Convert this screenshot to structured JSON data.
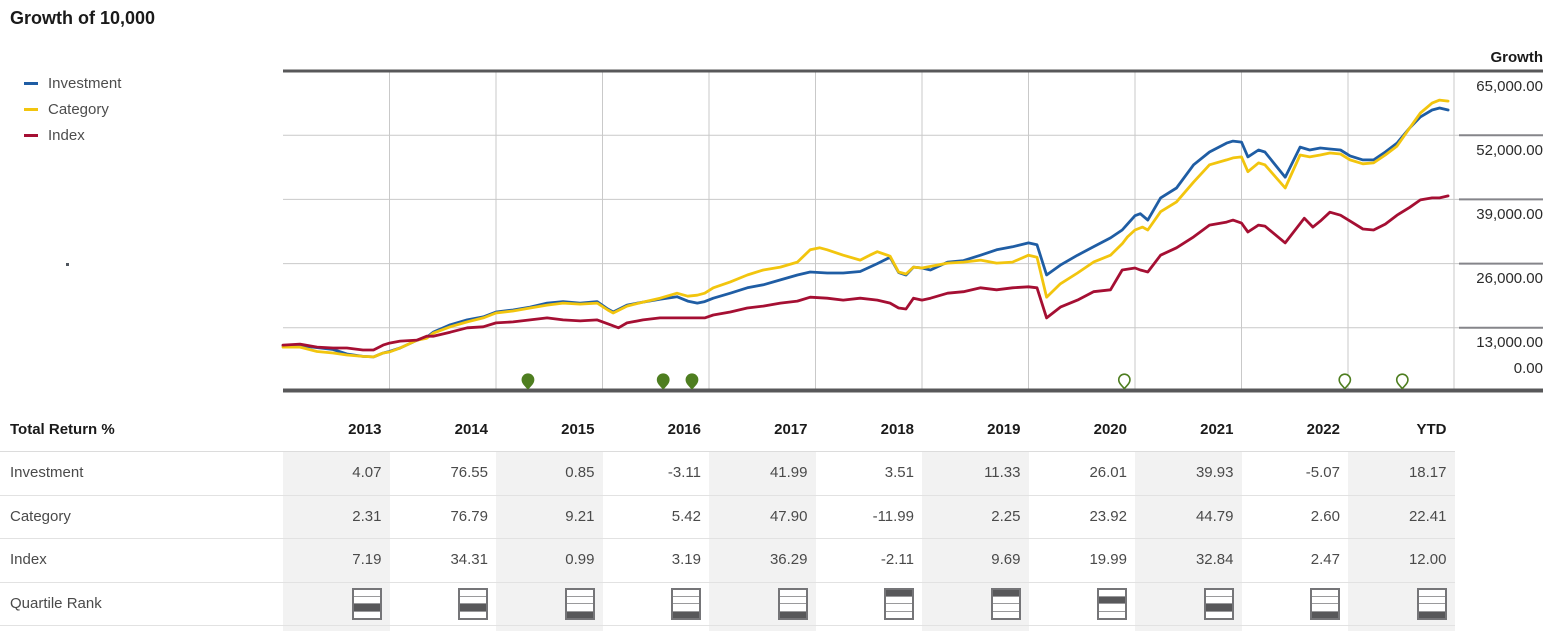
{
  "title": "Growth of 10,000",
  "legend": [
    {
      "label": "Investment",
      "color": "#1f5da4"
    },
    {
      "label": "Category",
      "color": "#f2c50e"
    },
    {
      "label": "Index",
      "color": "#a50f33"
    }
  ],
  "y_axis": {
    "header": "Growth",
    "labels": [
      "65,000.00",
      "52,000.00",
      "39,000.00",
      "26,000.00",
      "13,000.00",
      "0.00"
    ]
  },
  "chart_data": {
    "type": "line",
    "title": "Growth of 10,000",
    "x_unit": "years since Jan 2013",
    "x_range": [
      0,
      11
    ],
    "ylim": [
      0,
      65000
    ],
    "grid": true,
    "legend_position": "left",
    "series": [
      {
        "name": "Investment",
        "color": "#1f5da4",
        "points": [
          [
            0,
            9400
          ],
          [
            0.16,
            9400
          ],
          [
            0.32,
            9000
          ],
          [
            0.47,
            8600
          ],
          [
            0.6,
            7700
          ],
          [
            0.75,
            7200
          ],
          [
            0.85,
            7100
          ],
          [
            0.94,
            7900
          ],
          [
            1.0,
            8200
          ],
          [
            1.1,
            8900
          ],
          [
            1.26,
            10500
          ],
          [
            1.35,
            11100
          ],
          [
            1.41,
            12100
          ],
          [
            1.57,
            13600
          ],
          [
            1.73,
            14600
          ],
          [
            1.88,
            15200
          ],
          [
            2.0,
            16200
          ],
          [
            2.16,
            16600
          ],
          [
            2.32,
            17200
          ],
          [
            2.48,
            18000
          ],
          [
            2.63,
            18300
          ],
          [
            2.79,
            18000
          ],
          [
            2.95,
            18300
          ],
          [
            3.05,
            16800
          ],
          [
            3.1,
            16200
          ],
          [
            3.23,
            17600
          ],
          [
            3.38,
            18200
          ],
          [
            3.54,
            18800
          ],
          [
            3.7,
            19300
          ],
          [
            3.8,
            18400
          ],
          [
            3.89,
            18000
          ],
          [
            3.96,
            18300
          ],
          [
            4.04,
            19000
          ],
          [
            4.2,
            20000
          ],
          [
            4.36,
            21100
          ],
          [
            4.51,
            21700
          ],
          [
            4.67,
            22700
          ],
          [
            4.83,
            23700
          ],
          [
            4.95,
            24300
          ],
          [
            5.11,
            24100
          ],
          [
            5.26,
            24100
          ],
          [
            5.42,
            24400
          ],
          [
            5.58,
            26000
          ],
          [
            5.7,
            27300
          ],
          [
            5.78,
            24200
          ],
          [
            5.85,
            23700
          ],
          [
            5.92,
            25300
          ],
          [
            6.0,
            25100
          ],
          [
            6.08,
            24700
          ],
          [
            6.24,
            26300
          ],
          [
            6.39,
            26600
          ],
          [
            6.55,
            27700
          ],
          [
            6.7,
            28800
          ],
          [
            6.85,
            29400
          ],
          [
            7.0,
            30200
          ],
          [
            7.08,
            29800
          ],
          [
            7.17,
            23700
          ],
          [
            7.3,
            25700
          ],
          [
            7.46,
            27700
          ],
          [
            7.61,
            29400
          ],
          [
            7.77,
            31200
          ],
          [
            7.88,
            32800
          ],
          [
            7.93,
            34000
          ],
          [
            8.0,
            35700
          ],
          [
            8.05,
            36100
          ],
          [
            8.12,
            34800
          ],
          [
            8.24,
            39300
          ],
          [
            8.39,
            41300
          ],
          [
            8.55,
            46000
          ],
          [
            8.7,
            48600
          ],
          [
            8.86,
            50400
          ],
          [
            8.92,
            50800
          ],
          [
            9.0,
            50600
          ],
          [
            9.06,
            47600
          ],
          [
            9.16,
            49000
          ],
          [
            9.22,
            48600
          ],
          [
            9.41,
            43500
          ],
          [
            9.55,
            49600
          ],
          [
            9.64,
            49000
          ],
          [
            9.74,
            49400
          ],
          [
            9.83,
            49200
          ],
          [
            9.93,
            49000
          ],
          [
            10.02,
            47800
          ],
          [
            10.14,
            47000
          ],
          [
            10.24,
            47000
          ],
          [
            10.35,
            48600
          ],
          [
            10.46,
            50400
          ],
          [
            10.58,
            53500
          ],
          [
            10.68,
            55700
          ],
          [
            10.79,
            57100
          ],
          [
            10.86,
            57500
          ],
          [
            10.94,
            57100
          ]
        ]
      },
      {
        "name": "Category",
        "color": "#f2c50e",
        "points": [
          [
            0,
            9100
          ],
          [
            0.16,
            9100
          ],
          [
            0.32,
            8200
          ],
          [
            0.47,
            7900
          ],
          [
            0.6,
            7500
          ],
          [
            0.75,
            7200
          ],
          [
            0.85,
            7100
          ],
          [
            0.94,
            7900
          ],
          [
            1.0,
            8100
          ],
          [
            1.1,
            8900
          ],
          [
            1.26,
            10500
          ],
          [
            1.35,
            10900
          ],
          [
            1.41,
            11900
          ],
          [
            1.57,
            13200
          ],
          [
            1.73,
            14200
          ],
          [
            1.88,
            15000
          ],
          [
            2.0,
            16000
          ],
          [
            2.16,
            16400
          ],
          [
            2.32,
            17000
          ],
          [
            2.48,
            17600
          ],
          [
            2.63,
            18000
          ],
          [
            2.79,
            17800
          ],
          [
            2.95,
            18000
          ],
          [
            3.05,
            16600
          ],
          [
            3.1,
            16000
          ],
          [
            3.23,
            17400
          ],
          [
            3.38,
            18200
          ],
          [
            3.54,
            19000
          ],
          [
            3.7,
            20000
          ],
          [
            3.8,
            19400
          ],
          [
            3.89,
            19600
          ],
          [
            3.96,
            20000
          ],
          [
            4.04,
            21100
          ],
          [
            4.2,
            22300
          ],
          [
            4.36,
            23700
          ],
          [
            4.51,
            24700
          ],
          [
            4.67,
            25300
          ],
          [
            4.83,
            26300
          ],
          [
            4.95,
            28800
          ],
          [
            5.04,
            29200
          ],
          [
            5.11,
            28800
          ],
          [
            5.26,
            27700
          ],
          [
            5.42,
            26700
          ],
          [
            5.51,
            27700
          ],
          [
            5.58,
            28400
          ],
          [
            5.7,
            27500
          ],
          [
            5.78,
            24300
          ],
          [
            5.85,
            23900
          ],
          [
            5.92,
            25300
          ],
          [
            6.0,
            25100
          ],
          [
            6.24,
            26100
          ],
          [
            6.39,
            26300
          ],
          [
            6.55,
            26700
          ],
          [
            6.7,
            26100
          ],
          [
            6.85,
            26300
          ],
          [
            7.0,
            27700
          ],
          [
            7.08,
            27300
          ],
          [
            7.17,
            19200
          ],
          [
            7.3,
            21900
          ],
          [
            7.46,
            24100
          ],
          [
            7.61,
            26300
          ],
          [
            7.77,
            27700
          ],
          [
            7.88,
            30000
          ],
          [
            7.93,
            31400
          ],
          [
            8.0,
            32800
          ],
          [
            8.07,
            33400
          ],
          [
            8.12,
            32800
          ],
          [
            8.24,
            36500
          ],
          [
            8.39,
            38500
          ],
          [
            8.55,
            42500
          ],
          [
            8.7,
            46000
          ],
          [
            8.86,
            47000
          ],
          [
            8.92,
            47400
          ],
          [
            9.0,
            47600
          ],
          [
            9.06,
            44600
          ],
          [
            9.16,
            46400
          ],
          [
            9.22,
            46000
          ],
          [
            9.41,
            41300
          ],
          [
            9.55,
            48000
          ],
          [
            9.64,
            47600
          ],
          [
            9.74,
            48000
          ],
          [
            9.83,
            48400
          ],
          [
            9.93,
            48200
          ],
          [
            10.02,
            47000
          ],
          [
            10.14,
            46200
          ],
          [
            10.24,
            46400
          ],
          [
            10.35,
            48000
          ],
          [
            10.46,
            49800
          ],
          [
            10.58,
            53500
          ],
          [
            10.68,
            56500
          ],
          [
            10.79,
            58500
          ],
          [
            10.86,
            59100
          ],
          [
            10.94,
            58900
          ]
        ]
      },
      {
        "name": "Index",
        "color": "#a50f33",
        "points": [
          [
            0,
            9500
          ],
          [
            0.16,
            9700
          ],
          [
            0.32,
            9100
          ],
          [
            0.47,
            8900
          ],
          [
            0.6,
            8900
          ],
          [
            0.75,
            8500
          ],
          [
            0.85,
            8500
          ],
          [
            0.94,
            9500
          ],
          [
            1.0,
            9900
          ],
          [
            1.1,
            10300
          ],
          [
            1.26,
            10500
          ],
          [
            1.35,
            11300
          ],
          [
            1.41,
            11300
          ],
          [
            1.57,
            12100
          ],
          [
            1.73,
            13000
          ],
          [
            1.88,
            13200
          ],
          [
            2.0,
            14000
          ],
          [
            2.16,
            14200
          ],
          [
            2.32,
            14600
          ],
          [
            2.48,
            15000
          ],
          [
            2.63,
            14600
          ],
          [
            2.79,
            14400
          ],
          [
            2.95,
            14600
          ],
          [
            3.05,
            13800
          ],
          [
            3.15,
            13000
          ],
          [
            3.23,
            14000
          ],
          [
            3.38,
            14600
          ],
          [
            3.54,
            15000
          ],
          [
            3.7,
            15000
          ],
          [
            3.89,
            15000
          ],
          [
            3.96,
            15000
          ],
          [
            4.04,
            15600
          ],
          [
            4.2,
            16200
          ],
          [
            4.36,
            17000
          ],
          [
            4.51,
            17400
          ],
          [
            4.67,
            18000
          ],
          [
            4.83,
            18400
          ],
          [
            4.95,
            19200
          ],
          [
            5.11,
            19000
          ],
          [
            5.26,
            18600
          ],
          [
            5.42,
            19000
          ],
          [
            5.58,
            18600
          ],
          [
            5.7,
            18000
          ],
          [
            5.78,
            17000
          ],
          [
            5.85,
            16800
          ],
          [
            5.92,
            19000
          ],
          [
            6.0,
            18600
          ],
          [
            6.08,
            19000
          ],
          [
            6.24,
            20000
          ],
          [
            6.39,
            20300
          ],
          [
            6.55,
            21100
          ],
          [
            6.7,
            20700
          ],
          [
            6.85,
            21100
          ],
          [
            7.0,
            21300
          ],
          [
            7.08,
            21100
          ],
          [
            7.17,
            15000
          ],
          [
            7.3,
            17200
          ],
          [
            7.46,
            18600
          ],
          [
            7.61,
            20300
          ],
          [
            7.77,
            20700
          ],
          [
            7.88,
            24700
          ],
          [
            8.0,
            25100
          ],
          [
            8.05,
            24700
          ],
          [
            8.12,
            24300
          ],
          [
            8.24,
            27700
          ],
          [
            8.39,
            29200
          ],
          [
            8.55,
            31400
          ],
          [
            8.7,
            33800
          ],
          [
            8.86,
            34400
          ],
          [
            8.92,
            34800
          ],
          [
            9.0,
            34200
          ],
          [
            9.06,
            32400
          ],
          [
            9.16,
            33800
          ],
          [
            9.22,
            33600
          ],
          [
            9.41,
            30200
          ],
          [
            9.59,
            35200
          ],
          [
            9.67,
            33400
          ],
          [
            9.74,
            34600
          ],
          [
            9.83,
            36400
          ],
          [
            9.93,
            35800
          ],
          [
            10.02,
            34600
          ],
          [
            10.14,
            33000
          ],
          [
            10.24,
            32800
          ],
          [
            10.35,
            34000
          ],
          [
            10.46,
            35800
          ],
          [
            10.58,
            37400
          ],
          [
            10.68,
            38900
          ],
          [
            10.79,
            39300
          ],
          [
            10.86,
            39300
          ],
          [
            10.94,
            39700
          ]
        ]
      }
    ],
    "pins": {
      "color": "#4e7e20",
      "items": [
        {
          "t": 2.3,
          "filled": true
        },
        {
          "t": 3.57,
          "filled": true
        },
        {
          "t": 3.84,
          "filled": true
        },
        {
          "t": 7.9,
          "filled": false
        },
        {
          "t": 9.97,
          "filled": false
        },
        {
          "t": 10.51,
          "filled": false
        }
      ]
    }
  },
  "table": {
    "header_label": "Total Return %",
    "columns": [
      "2013",
      "2014",
      "2015",
      "2016",
      "2017",
      "2018",
      "2019",
      "2020",
      "2021",
      "2022",
      "YTD"
    ],
    "rows": [
      {
        "label": "Investment",
        "values": [
          "4.07",
          "76.55",
          "0.85",
          "-3.11",
          "41.99",
          "3.51",
          "11.33",
          "26.01",
          "39.93",
          "-5.07",
          "18.17"
        ]
      },
      {
        "label": "Category",
        "values": [
          "2.31",
          "76.79",
          "9.21",
          "5.42",
          "47.90",
          "-11.99",
          "2.25",
          "23.92",
          "44.79",
          "2.60",
          "22.41"
        ]
      },
      {
        "label": "Index",
        "values": [
          "7.19",
          "34.31",
          "0.99",
          "3.19",
          "36.29",
          "-2.11",
          "9.69",
          "19.99",
          "32.84",
          "2.47",
          "12.00"
        ]
      }
    ],
    "quartile_row_label": "Quartile Rank",
    "quartile_ranks": [
      3,
      3,
      4,
      4,
      4,
      1,
      1,
      2,
      3,
      4,
      4
    ],
    "shaded_columns": [
      0,
      2,
      4,
      6,
      8,
      10
    ]
  }
}
